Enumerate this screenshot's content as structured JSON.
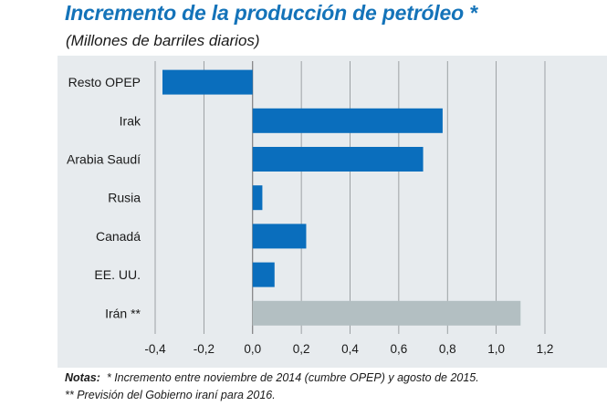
{
  "title": "Incremento de la producción de petróleo *",
  "subtitle": "(Millones de barriles diarios)",
  "notes": {
    "label": "Notas:",
    "line1": "* Incremento entre noviembre de 2014 (cumbre OPEP) y agosto de 2015.",
    "line2": "** Previsión del Gobierno iraní para 2016."
  },
  "colors": {
    "title": "#1473b9",
    "bar": "#0a6ebd",
    "bar_forecast": "#b3bfc2",
    "panel": "#e7ebee"
  },
  "chart_data": {
    "type": "bar",
    "orientation": "horizontal",
    "categories": [
      "Resto OPEP",
      "Irak",
      "Arabia Saudí",
      "Rusia",
      "Canadá",
      "EE. UU.",
      "Irán **"
    ],
    "values": [
      -0.37,
      0.78,
      0.7,
      0.04,
      0.22,
      0.09,
      1.1
    ],
    "highlight": [
      false,
      false,
      false,
      false,
      false,
      false,
      true
    ],
    "xlim": [
      -0.4,
      1.2
    ],
    "xticks": [
      -0.4,
      -0.2,
      0.0,
      0.2,
      0.4,
      0.6,
      0.8,
      1.0,
      1.2
    ],
    "xtick_labels": [
      "-0,4",
      "-0,2",
      "0,0",
      "0,2",
      "0,4",
      "0,6",
      "0,8",
      "1,0",
      "1,2"
    ],
    "grid": true
  }
}
